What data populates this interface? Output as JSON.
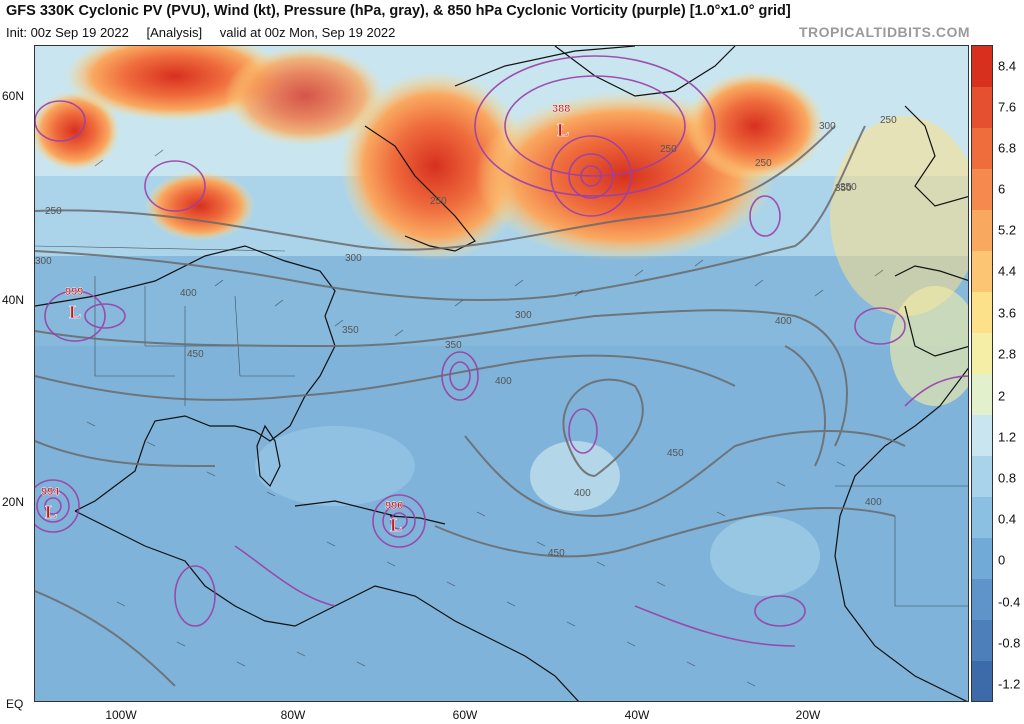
{
  "header": {
    "title": "GFS 330K Cyclonic PV (PVU), Wind (kt), Pressure (hPa, gray), & 850 hPa Cyclonic Vorticity (purple) [1.0°x1.0° grid]",
    "init": "Init: 00z Sep 19 2022",
    "analysis": "[Analysis]",
    "valid": "valid at 00z Mon, Sep 19 2022",
    "watermark": "TROPICALTIDBITS.COM"
  },
  "map": {
    "lat_labels": [
      "60N",
      "40N",
      "20N",
      "EQ"
    ],
    "lon_labels": [
      "100W",
      "80W",
      "60W",
      "40W",
      "20W"
    ],
    "lows": [
      {
        "pressure": "999",
        "symbol": "L"
      },
      {
        "pressure": "994",
        "symbol": "L"
      },
      {
        "pressure": "990",
        "symbol": "L"
      },
      {
        "pressure": "388",
        "symbol": "L"
      }
    ],
    "contour_labels": [
      "250",
      "250",
      "250",
      "250",
      "300",
      "300",
      "300",
      "350",
      "350",
      "350",
      "400",
      "400",
      "400",
      "400",
      "450",
      "450",
      "450",
      "250",
      "300",
      "350",
      "400"
    ]
  },
  "colorbar": {
    "labels": [
      "8.4",
      "7.6",
      "6.8",
      "6",
      "5.2",
      "4.4",
      "3.6",
      "2.8",
      "2",
      "1.2",
      "0.8",
      "0.4",
      "0",
      "-0.4",
      "-0.8",
      "-1.2"
    ],
    "colors": [
      "#d7301f",
      "#e55031",
      "#ef6c3d",
      "#f58a4e",
      "#f9a860",
      "#fcc574",
      "#fde08a",
      "#f5eea7",
      "#e3f0cc",
      "#c9e5ef",
      "#a9d3ea",
      "#8cc0e2",
      "#72aad7",
      "#5e94c9",
      "#4d7fbb",
      "#3d6aa9"
    ]
  }
}
